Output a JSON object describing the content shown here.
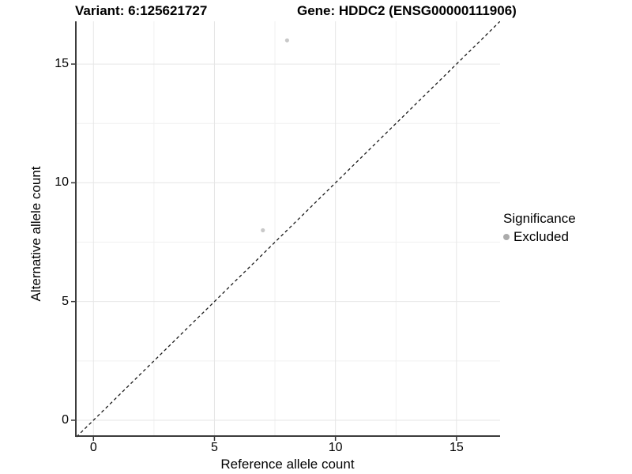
{
  "chart_data": {
    "type": "scatter",
    "title_variant": "Variant: 6:125621727",
    "title_gene": "Gene: HDDC2 (ENSG00000111906)",
    "xlabel": "Reference allele count",
    "ylabel": "Alternative allele count",
    "xlim": [
      -0.76,
      16.8
    ],
    "ylim": [
      -0.7,
      16.8
    ],
    "xticks": [
      0,
      5,
      10,
      15
    ],
    "yticks": [
      0,
      5,
      10,
      15
    ],
    "x_minor_gridlines": [
      2.5,
      7.5,
      12.5
    ],
    "y_minor_gridlines": [
      2.5,
      7.5,
      12.5
    ],
    "grid": "on",
    "legend_position": "right",
    "identity_line": {
      "slope": 1,
      "intercept": 0,
      "style": "dashed",
      "color": "#1a1a1a"
    },
    "points": [
      {
        "x": 8,
        "y": 16,
        "significance": "Excluded"
      },
      {
        "x": 7,
        "y": 8,
        "significance": "Excluded"
      }
    ],
    "point_color": "#c9c9c9",
    "legend": {
      "title": "Significance",
      "items": [
        {
          "label": "Excluded",
          "color": "#ababab"
        }
      ]
    },
    "colors": {
      "major_grid": "#e6e6e6",
      "minor_grid": "#f1f1f1",
      "axis_line": "#3c3c3c",
      "tick_mark": "#333333",
      "text": "#000000"
    }
  }
}
